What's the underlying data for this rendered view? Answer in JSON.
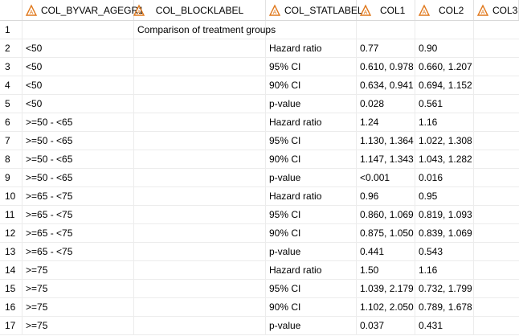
{
  "headers": [
    {
      "label": "",
      "icon": ""
    },
    {
      "label": "COL_BYVAR_AGEGR1",
      "icon": "character-column-icon"
    },
    {
      "label": "COL_BLOCKLABEL",
      "icon": "character-column-icon"
    },
    {
      "label": "COL_STATLABEL",
      "icon": "character-column-icon"
    },
    {
      "label": "COL1",
      "icon": "character-column-icon"
    },
    {
      "label": "COL2",
      "icon": "character-column-icon"
    },
    {
      "label": "COL3",
      "icon": "character-column-icon"
    }
  ],
  "icon_color": "#e07a1f",
  "rows": [
    [
      "1",
      "",
      "Comparison of treatment groups",
      "",
      "",
      "",
      ""
    ],
    [
      "2",
      "<50",
      "",
      "Hazard ratio",
      "0.77",
      "0.90",
      ""
    ],
    [
      "3",
      "<50",
      "",
      "95% CI",
      "0.610, 0.978",
      "0.660, 1.207",
      ""
    ],
    [
      "4",
      "<50",
      "",
      "90% CI",
      "0.634, 0.941",
      "0.694, 1.152",
      ""
    ],
    [
      "5",
      "<50",
      "",
      "p-value",
      "0.028",
      "0.561",
      ""
    ],
    [
      "6",
      ">=50 - <65",
      "",
      "Hazard ratio",
      "1.24",
      "1.16",
      ""
    ],
    [
      "7",
      ">=50 - <65",
      "",
      "95% CI",
      "1.130, 1.364",
      "1.022, 1.308",
      ""
    ],
    [
      "8",
      ">=50 - <65",
      "",
      "90% CI",
      "1.147, 1.343",
      "1.043, 1.282",
      ""
    ],
    [
      "9",
      ">=50 - <65",
      "",
      "p-value",
      "<0.001",
      "0.016",
      ""
    ],
    [
      "10",
      ">=65 - <75",
      "",
      "Hazard ratio",
      "0.96",
      "0.95",
      ""
    ],
    [
      "11",
      ">=65 - <75",
      "",
      "95% CI",
      "0.860, 1.069",
      "0.819, 1.093",
      ""
    ],
    [
      "12",
      ">=65 - <75",
      "",
      "90% CI",
      "0.875, 1.050",
      "0.839, 1.069",
      ""
    ],
    [
      "13",
      ">=65 - <75",
      "",
      "p-value",
      "0.441",
      "0.543",
      ""
    ],
    [
      "14",
      ">=75",
      "",
      "Hazard ratio",
      "1.50",
      "1.16",
      ""
    ],
    [
      "15",
      ">=75",
      "",
      "95% CI",
      "1.039, 2.179",
      "0.732, 1.799",
      ""
    ],
    [
      "16",
      ">=75",
      "",
      "90% CI",
      "1.102, 2.050",
      "0.789, 1.678",
      ""
    ],
    [
      "17",
      ">=75",
      "",
      "p-value",
      "0.037",
      "0.431",
      ""
    ]
  ]
}
